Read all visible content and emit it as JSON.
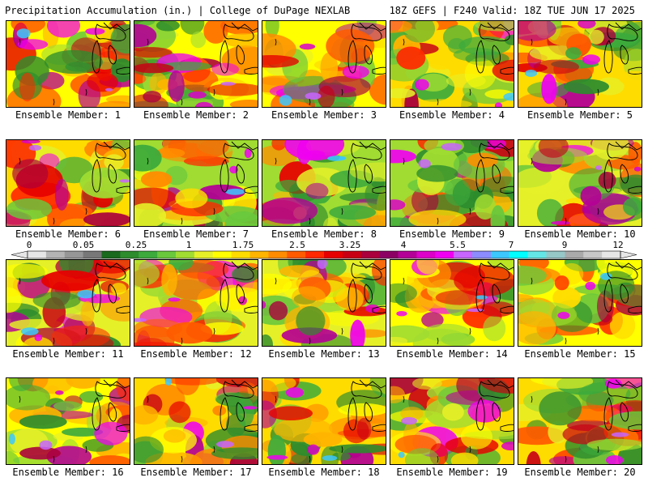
{
  "header": {
    "left": "Precipitation Accumulation (in.) | College of DuPage NEXLAB",
    "right": "18Z GEFS | F240 Valid: 18Z TUE JUN 17 2025"
  },
  "colorbar": {
    "tick_labels": [
      "0",
      "0.05",
      "0.25",
      "1",
      "1.75",
      "2.5",
      "3.25",
      "4",
      "5.5",
      "7",
      "9",
      "12"
    ],
    "colors": [
      "#e6e6e6",
      "#b4b4b4",
      "#969696",
      "#787878",
      "#19691e",
      "#2d8c2d",
      "#3caa3c",
      "#69c83c",
      "#a0dc32",
      "#e6f028",
      "#ffff00",
      "#ffdc00",
      "#ffb400",
      "#ff8c00",
      "#ff5a00",
      "#ff2800",
      "#e60000",
      "#c80014",
      "#aa003c",
      "#8c0064",
      "#b40096",
      "#dc00c8",
      "#f000f0",
      "#c864ff",
      "#8c8cff",
      "#3cc8ff",
      "#00ffff",
      "#64e6e6",
      "#96c8c8",
      "#aaaaaa",
      "#c8c8c8",
      "#e6e6e6"
    ]
  },
  "members": [
    {
      "label": "Ensemble Member: 1"
    },
    {
      "label": "Ensemble Member: 2"
    },
    {
      "label": "Ensemble Member: 3"
    },
    {
      "label": "Ensemble Member: 4"
    },
    {
      "label": "Ensemble Member: 5"
    },
    {
      "label": "Ensemble Member: 6"
    },
    {
      "label": "Ensemble Member: 7"
    },
    {
      "label": "Ensemble Member: 8"
    },
    {
      "label": "Ensemble Member: 9"
    },
    {
      "label": "Ensemble Member: 10"
    },
    {
      "label": "Ensemble Member: 11"
    },
    {
      "label": "Ensemble Member: 12"
    },
    {
      "label": "Ensemble Member: 13"
    },
    {
      "label": "Ensemble Member: 14"
    },
    {
      "label": "Ensemble Member: 15"
    },
    {
      "label": "Ensemble Member: 16"
    },
    {
      "label": "Ensemble Member: 17"
    },
    {
      "label": "Ensemble Member: 18"
    },
    {
      "label": "Ensemble Member: 19"
    },
    {
      "label": "Ensemble Member: 20"
    }
  ]
}
